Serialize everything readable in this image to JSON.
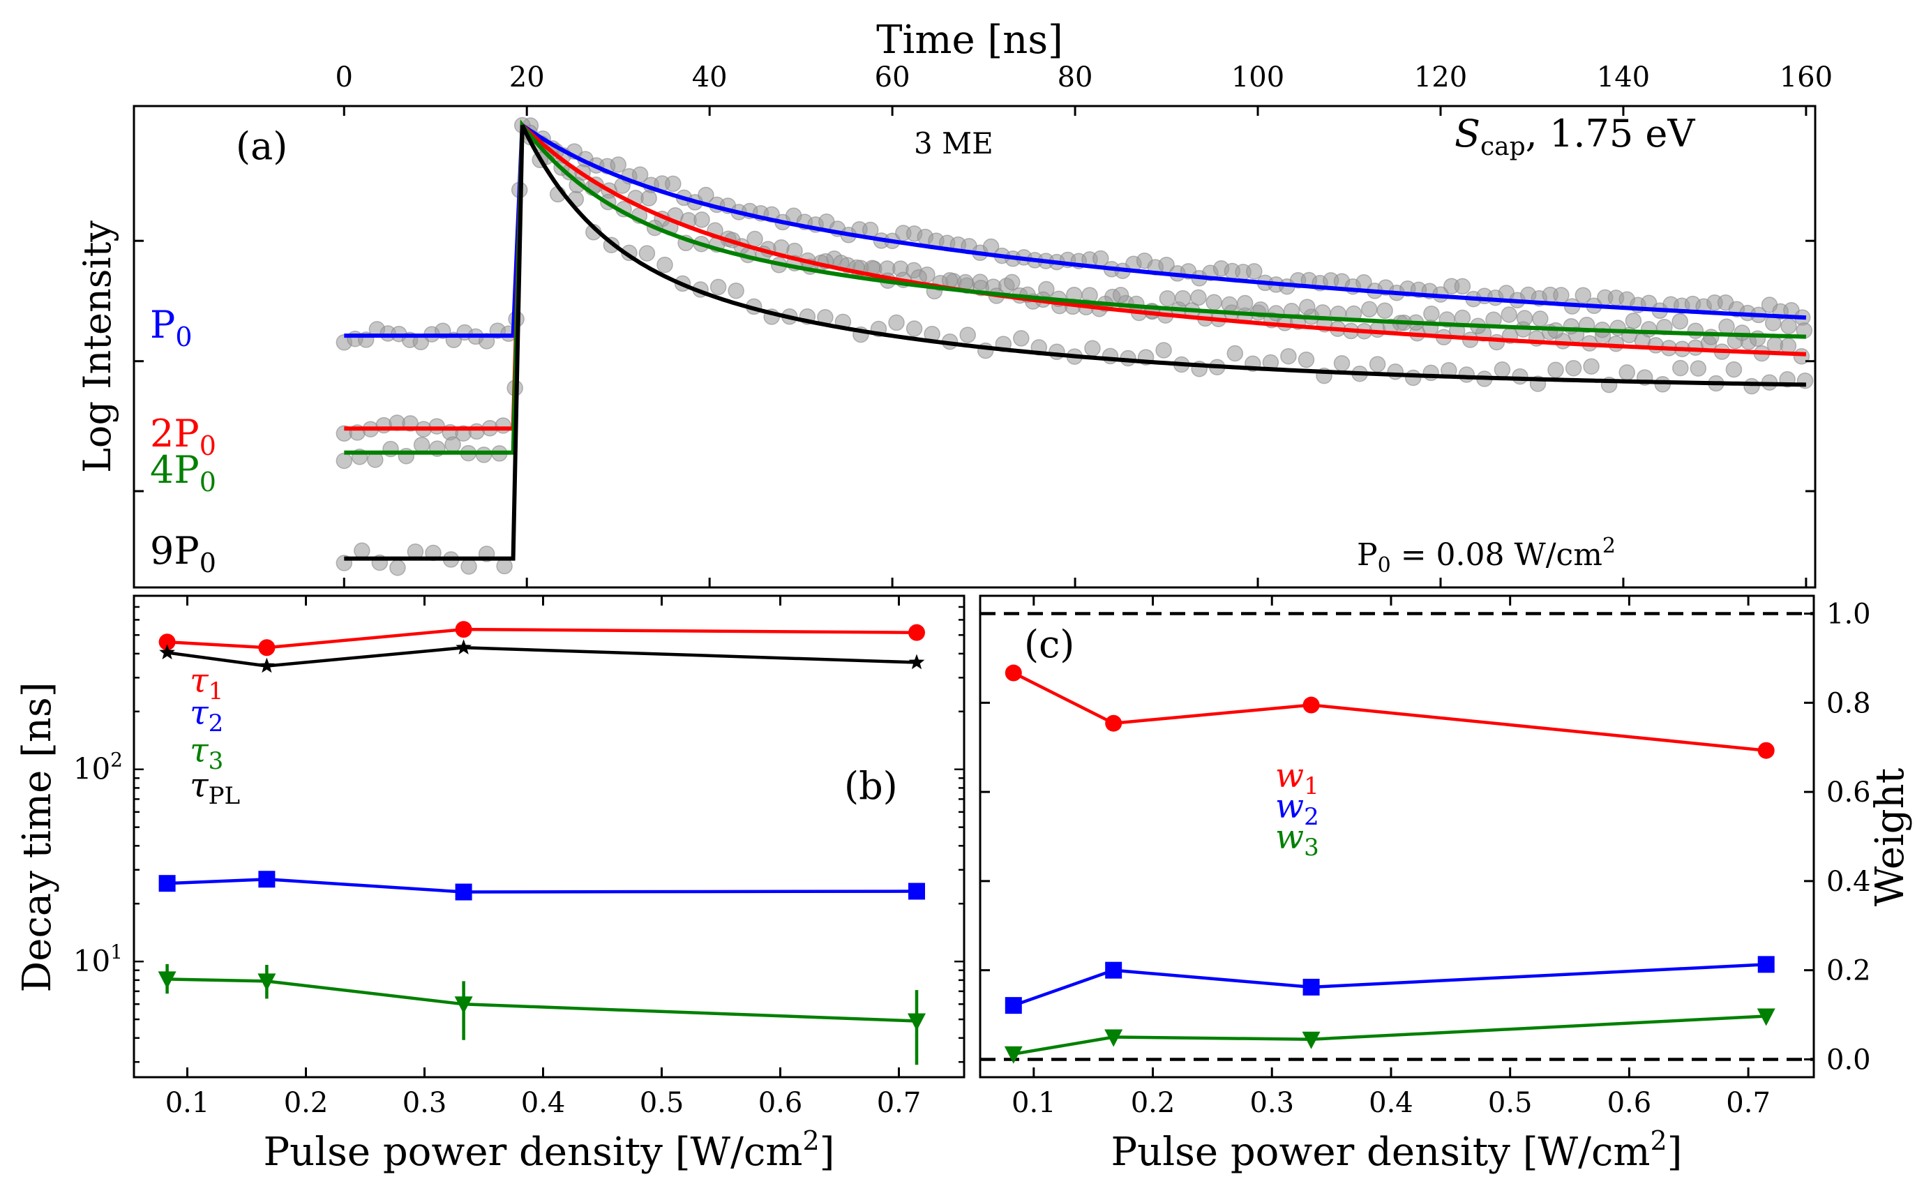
{
  "colors": {
    "P0": "#0000ff",
    "2P0": "#ff0000",
    "4P0": "#008000",
    "9P0": "#000000",
    "data_points": "#999999",
    "tau1": "#ff0000",
    "tau2": "#0000ff",
    "tau3": "#008000",
    "tauPL": "#000000",
    "w1": "#ff0000",
    "w2": "#0000ff",
    "w3": "#008000"
  },
  "chart_data": [
    {
      "id": "a",
      "type": "line",
      "panel_label": "(a)",
      "xlabel": "Time [ns]",
      "ylabel": "Log Intensity",
      "xlim": [
        -23,
        161
      ],
      "ylim": [
        0,
        1
      ],
      "x_ticks": [
        0,
        20,
        40,
        60,
        80,
        100,
        120,
        140,
        160
      ],
      "x_tick_labels": [
        "0",
        "20",
        "40",
        "60",
        "80",
        "100",
        "120",
        "140",
        "160"
      ],
      "sample_label": "3 ME",
      "energy_label_main": "S",
      "energy_label_sub": "cap",
      "energy_label_rest": ", 1.75 eV",
      "power_note_main": "P",
      "power_note_sub": "0",
      "power_note_rest": " = 0.08 W/cm",
      "power_note_sup": "2",
      "grid": false,
      "series": [
        {
          "name": "P0",
          "label_main": "P",
          "label_sub": "0",
          "baseline": 0.523,
          "peak": 0.96,
          "a1": 0.237,
          "tau1": 60,
          "a2": 0.105,
          "tau2": 12,
          "tail": 0.08
        },
        {
          "name": "2P0",
          "label_main": "2P",
          "label_sub": "0",
          "baseline": 0.33,
          "peak": 0.96,
          "a1": 0.303,
          "tau1": 55,
          "a2": 0.154,
          "tau2": 12,
          "tail": 0.042
        },
        {
          "name": "4P0",
          "label_main": "4P",
          "label_sub": "0",
          "baseline": 0.28,
          "peak": 0.96,
          "a1": 0.238,
          "tau1": 60,
          "a2": 0.208,
          "tau2": 10,
          "tail": 0.016
        },
        {
          "name": "9P0",
          "label_main": "9P",
          "label_sub": "0",
          "baseline": 0.06,
          "peak": 0.96,
          "a1": 0.274,
          "tau1": 40,
          "a2": 0.261,
          "tau2": 8,
          "tail": 0.012
        }
      ]
    },
    {
      "id": "b",
      "type": "line",
      "panel_label": "(b)",
      "xlabel_main": "Pulse power density [W/cm",
      "xlabel_sup": "2",
      "xlabel_end": "]",
      "ylabel": "Decay time [ns]",
      "yscale": "log",
      "xlim": [
        0.055,
        0.755
      ],
      "ylim": [
        2.5,
        800
      ],
      "x_ticks": [
        0.1,
        0.2,
        0.3,
        0.4,
        0.5,
        0.6,
        0.7
      ],
      "x_tick_labels": [
        "0.1",
        "0.2",
        "0.3",
        "0.4",
        "0.5",
        "0.6",
        "0.7"
      ],
      "y_ticks": [
        10,
        100
      ],
      "y_tick_base": "10",
      "y_tick_exponents": [
        "1",
        "2"
      ],
      "x": [
        0.083,
        0.167,
        0.333,
        0.715
      ],
      "series": [
        {
          "name": "τ1",
          "label_main": "τ",
          "label_sub": "1",
          "marker": "circle",
          "values": [
            460,
            430,
            535,
            515
          ]
        },
        {
          "name": "τ2",
          "label_main": "τ",
          "label_sub": "2",
          "marker": "square",
          "values": [
            25.5,
            26.8,
            23,
            23.2
          ]
        },
        {
          "name": "τ3",
          "label_main": "τ",
          "label_sub": "3",
          "marker": "triangle-down",
          "values": [
            8.1,
            7.9,
            6.0,
            4.9
          ],
          "err_low": [
            1.3,
            1.5,
            2.1,
            2.0
          ],
          "err_high": [
            1.6,
            1.7,
            1.9,
            2.2
          ]
        },
        {
          "name": "τPL",
          "label_main": "τ",
          "label_sub": "PL",
          "marker": "star",
          "values": [
            405,
            345,
            430,
            360
          ]
        }
      ]
    },
    {
      "id": "c",
      "type": "line",
      "panel_label": "(c)",
      "xlabel_main": "Pulse power density [W/cm",
      "xlabel_sup": "2",
      "xlabel_end": "]",
      "ylabel": "Weight",
      "xlim": [
        0.055,
        0.755
      ],
      "ylim": [
        -0.04,
        1.04
      ],
      "x_ticks": [
        0.1,
        0.2,
        0.3,
        0.4,
        0.5,
        0.6,
        0.7
      ],
      "x_tick_labels": [
        "0.1",
        "0.2",
        "0.3",
        "0.4",
        "0.5",
        "0.6",
        "0.7"
      ],
      "y_ticks": [
        0.0,
        0.2,
        0.4,
        0.6,
        0.8,
        1.0
      ],
      "y_tick_labels": [
        "0.0",
        "0.2",
        "0.4",
        "0.6",
        "0.8",
        "1.0"
      ],
      "hlines": [
        0.0,
        1.0
      ],
      "x": [
        0.083,
        0.167,
        0.333,
        0.715
      ],
      "series": [
        {
          "name": "w1",
          "label_main": "w",
          "label_sub": "1",
          "marker": "circle",
          "values": [
            0.867,
            0.754,
            0.795,
            0.693
          ]
        },
        {
          "name": "w2",
          "label_main": "w",
          "label_sub": "2",
          "marker": "square",
          "values": [
            0.121,
            0.2,
            0.162,
            0.213
          ]
        },
        {
          "name": "w3",
          "label_main": "w",
          "label_sub": "3",
          "marker": "triangle-down",
          "values": [
            0.012,
            0.05,
            0.045,
            0.097
          ]
        }
      ]
    }
  ]
}
